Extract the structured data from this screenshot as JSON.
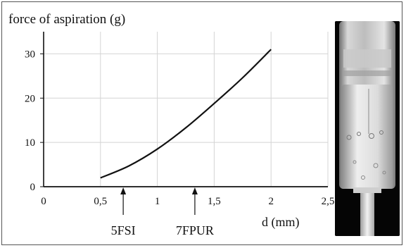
{
  "chart_data": {
    "type": "line",
    "title": "force of aspiration (g)",
    "xlabel": "d (mm)",
    "ylabel": "",
    "xlim": [
      0,
      2.5
    ],
    "ylim": [
      0,
      35
    ],
    "x_ticks": [
      0,
      0.5,
      1,
      1.5,
      2,
      2.5
    ],
    "x_tick_labels": [
      "0",
      "0,5",
      "1",
      "1,5",
      "2",
      "2,5"
    ],
    "y_ticks": [
      0,
      10,
      20,
      30
    ],
    "y_tick_labels": [
      "0",
      "10",
      "20",
      "30"
    ],
    "grid": true,
    "series": [
      {
        "name": "",
        "x": [
          0.5,
          0.75,
          1.0,
          1.25,
          1.5,
          1.75,
          2.0
        ],
        "y": [
          2,
          4.7,
          8.5,
          13.3,
          18.8,
          24.6,
          31
        ]
      }
    ],
    "annotations": [
      {
        "label": "5FSI",
        "x": 0.7
      },
      {
        "label": "7FPUR",
        "x": 1.33
      }
    ],
    "colors": {
      "line": "#111111",
      "grid": "#d4d4d4",
      "axis": "#111111"
    }
  }
}
